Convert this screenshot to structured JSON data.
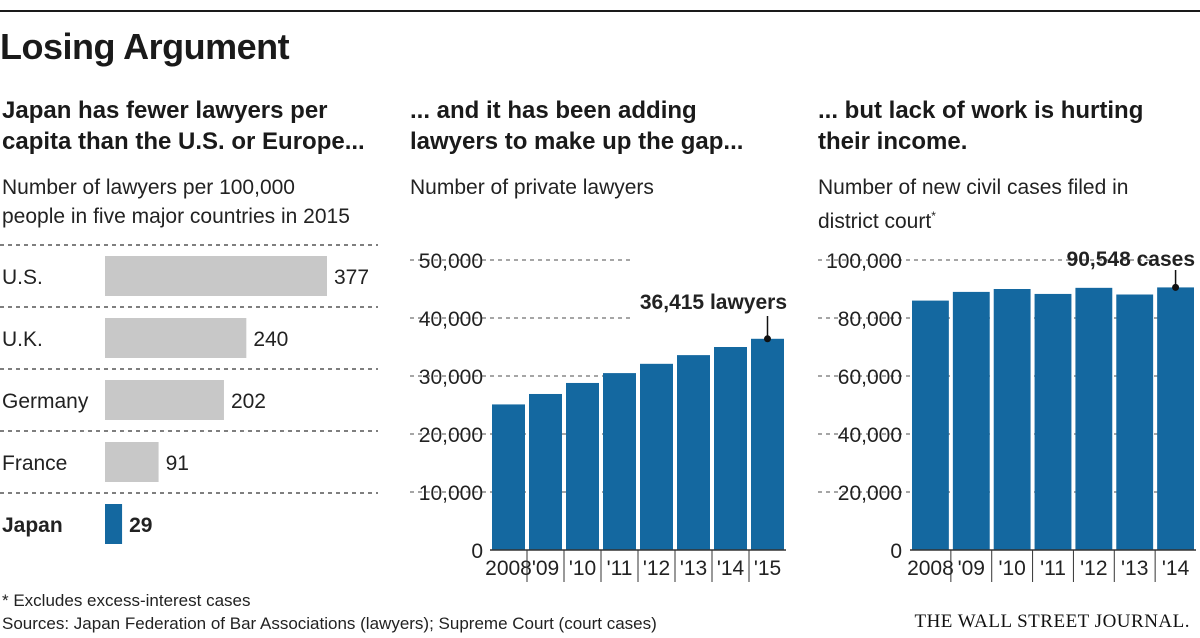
{
  "title": "Losing Argument",
  "panels": [
    {
      "heading_lines": [
        "Japan has fewer lawyers per",
        "capita than the U.S. or Europe..."
      ],
      "subtitle_lines": [
        "Number of lawyers per 100,000",
        "people in five major countries in 2015"
      ]
    },
    {
      "heading_lines": [
        "... and it has been adding",
        "lawyers to make up the gap..."
      ],
      "subtitle_lines": [
        "Number of private lawyers"
      ]
    },
    {
      "heading_lines": [
        "... but lack of work is hurting",
        "their income."
      ],
      "subtitle_lines": [
        "Number of new civil cases filed in",
        "district court"
      ],
      "subtitle_mark": "*"
    }
  ],
  "footnote": "* Excludes excess-interest cases",
  "source": "Sources: Japan Federation of Bar Associations (lawyers); Supreme Court (court cases)",
  "brand": "THE WALL STREET JOURNAL.",
  "colors": {
    "gray_bar": "#c8c8c8",
    "highlight_bar": "#1468a0",
    "text": "#1a1a1a"
  },
  "chart_data": [
    {
      "type": "bar",
      "orientation": "horizontal",
      "categories": [
        "U.S.",
        "U.K.",
        "Germany",
        "France",
        "Japan"
      ],
      "values": [
        377,
        240,
        202,
        91,
        29
      ],
      "value_labels": [
        "377",
        "240",
        "202",
        "91",
        "29"
      ],
      "highlight": "Japan"
    },
    {
      "type": "bar",
      "categories": [
        "2008",
        "'09",
        "'10",
        "'11",
        "'12",
        "'13",
        "'14",
        "'15"
      ],
      "values": [
        25100,
        26900,
        28800,
        30500,
        32100,
        33600,
        35000,
        36415
      ],
      "ylim": [
        0,
        50000
      ],
      "yticks": [
        "50,000",
        "40,000",
        "30,000",
        "20,000",
        "10,000",
        "0"
      ],
      "ytick_values": [
        50000,
        40000,
        30000,
        20000,
        10000,
        0
      ],
      "annotation": "36,415 lawyers"
    },
    {
      "type": "bar",
      "categories": [
        "2008",
        "'09",
        "'10",
        "'11",
        "'12",
        "'13",
        "'14"
      ],
      "values": [
        86000,
        89000,
        90000,
        88300,
        90400,
        88100,
        90548
      ],
      "ylim": [
        0,
        100000
      ],
      "yticks": [
        "100,000",
        "80,000",
        "60,000",
        "40,000",
        "20,000",
        "0"
      ],
      "ytick_values": [
        100000,
        80000,
        60000,
        40000,
        20000,
        0
      ],
      "annotation": "90,548 cases"
    }
  ]
}
